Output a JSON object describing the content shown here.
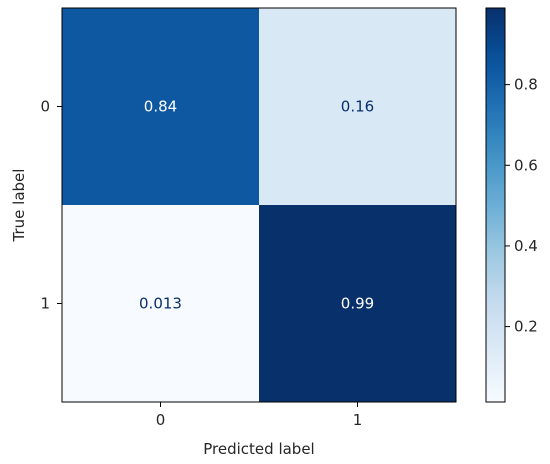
{
  "chart_data": {
    "type": "heatmap",
    "title": "",
    "xlabel": "Predicted label",
    "ylabel": "True label",
    "x_categories": [
      "0",
      "1"
    ],
    "y_categories": [
      "0",
      "1"
    ],
    "values": [
      [
        0.84,
        0.16
      ],
      [
        0.013,
        0.99
      ]
    ],
    "value_labels": [
      [
        "0.84",
        "0.16"
      ],
      [
        "0.013",
        "0.99"
      ]
    ],
    "colormap": "Blues",
    "colorbar": {
      "range": [
        0.013,
        0.99
      ],
      "ticks": [
        0.2,
        0.4,
        0.6,
        0.8
      ],
      "tick_labels": [
        "0.2",
        "0.4",
        "0.6",
        "0.8"
      ]
    },
    "colors": {
      "low": "#f7fbff",
      "high": "#08306b",
      "text_on_dark": "#ffffff",
      "text_on_light": "#08306b"
    }
  }
}
